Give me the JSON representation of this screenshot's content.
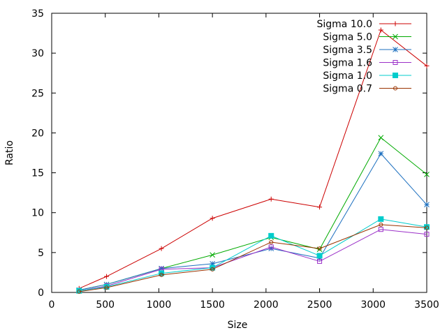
{
  "chart_data": {
    "type": "line",
    "title": "",
    "xlabel": "Size",
    "ylabel": "Ratio",
    "xlim": [
      0,
      3500
    ],
    "ylim": [
      0,
      35
    ],
    "xticks": [
      0,
      500,
      1000,
      1500,
      2000,
      2500,
      3000,
      3500
    ],
    "yticks": [
      0,
      5,
      10,
      15,
      20,
      25,
      30,
      35
    ],
    "grid": false,
    "legend_position": "top-right",
    "x": [
      256,
      512,
      1024,
      1500,
      2048,
      2500,
      3072,
      3500
    ],
    "series": [
      {
        "name": "Sigma 10.0",
        "color": "#cc0000",
        "marker": "plus",
        "values": [
          0.5,
          2.0,
          5.5,
          9.3,
          11.7,
          10.7,
          32.9,
          28.4
        ]
      },
      {
        "name": "Sigma 5.0",
        "color": "#00aa00",
        "marker": "cross",
        "values": [
          0.3,
          1.0,
          3.0,
          4.7,
          6.9,
          5.4,
          19.4,
          14.8
        ]
      },
      {
        "name": "Sigma 3.5",
        "color": "#1c6fbf",
        "marker": "star",
        "values": [
          0.3,
          1.0,
          3.0,
          3.6,
          5.5,
          4.3,
          17.4,
          11.0
        ]
      },
      {
        "name": "Sigma 1.6",
        "color": "#9b30c8",
        "marker": "square-open",
        "values": [
          0.2,
          0.8,
          2.9,
          3.1,
          5.7,
          3.9,
          7.9,
          7.3
        ]
      },
      {
        "name": "Sigma 1.0",
        "color": "#00cccc",
        "marker": "square-filled",
        "values": [
          0.2,
          0.7,
          2.4,
          3.1,
          7.1,
          4.6,
          9.2,
          8.2
        ]
      },
      {
        "name": "Sigma 0.7",
        "color": "#993300",
        "marker": "circle",
        "values": [
          0.1,
          0.6,
          2.2,
          2.9,
          6.3,
          5.5,
          8.5,
          8.1
        ]
      }
    ]
  }
}
